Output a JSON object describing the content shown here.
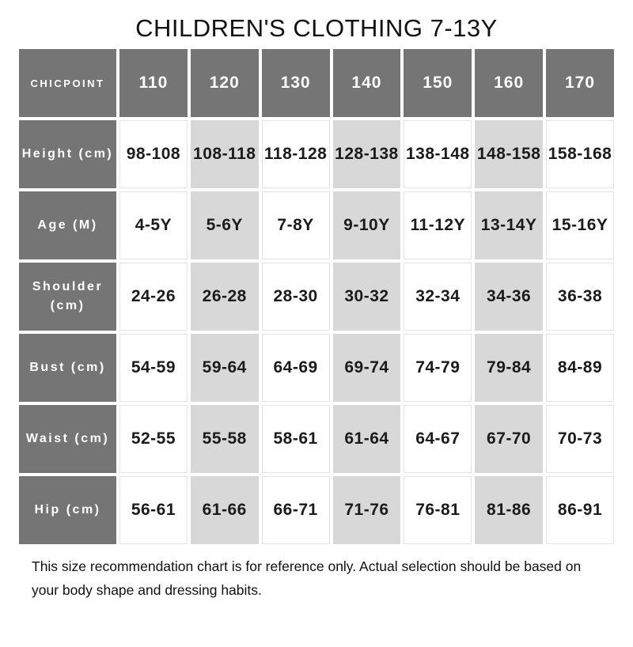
{
  "title": "CHILDREN'S CLOTHING 7-13Y",
  "colors": {
    "header_bg": "#757575",
    "header_text": "#ffffff",
    "shaded_cell_bg": "#d8d8d8",
    "white_cell_border": "#e3e3e3",
    "body_text": "#1b1b1b"
  },
  "table": {
    "corner_label": "CHICPOINT",
    "size_columns": [
      "110",
      "120",
      "130",
      "140",
      "150",
      "160",
      "170"
    ],
    "shaded_column_indexes": [
      1,
      3,
      5
    ],
    "rows": [
      {
        "label": "Height (cm)",
        "values": [
          "98-108",
          "108-118",
          "118-128",
          "128-138",
          "138-148",
          "148-158",
          "158-168"
        ]
      },
      {
        "label": "Age (M)",
        "values": [
          "4-5Y",
          "5-6Y",
          "7-8Y",
          "9-10Y",
          "11-12Y",
          "13-14Y",
          "15-16Y"
        ]
      },
      {
        "label": "Shoulder (cm)",
        "values": [
          "24-26",
          "26-28",
          "28-30",
          "30-32",
          "32-34",
          "34-36",
          "36-38"
        ]
      },
      {
        "label": "Bust (cm)",
        "values": [
          "54-59",
          "59-64",
          "64-69",
          "69-74",
          "74-79",
          "79-84",
          "84-89"
        ]
      },
      {
        "label": "Waist (cm)",
        "values": [
          "52-55",
          "55-58",
          "58-61",
          "61-64",
          "64-67",
          "67-70",
          "70-73"
        ]
      },
      {
        "label": "Hip (cm)",
        "values": [
          "56-61",
          "61-66",
          "66-71",
          "71-76",
          "76-81",
          "81-86",
          "86-91"
        ]
      }
    ]
  },
  "footer_note": "This size recommendation chart is for reference only. Actual selection should be based on your body shape and dressing habits."
}
